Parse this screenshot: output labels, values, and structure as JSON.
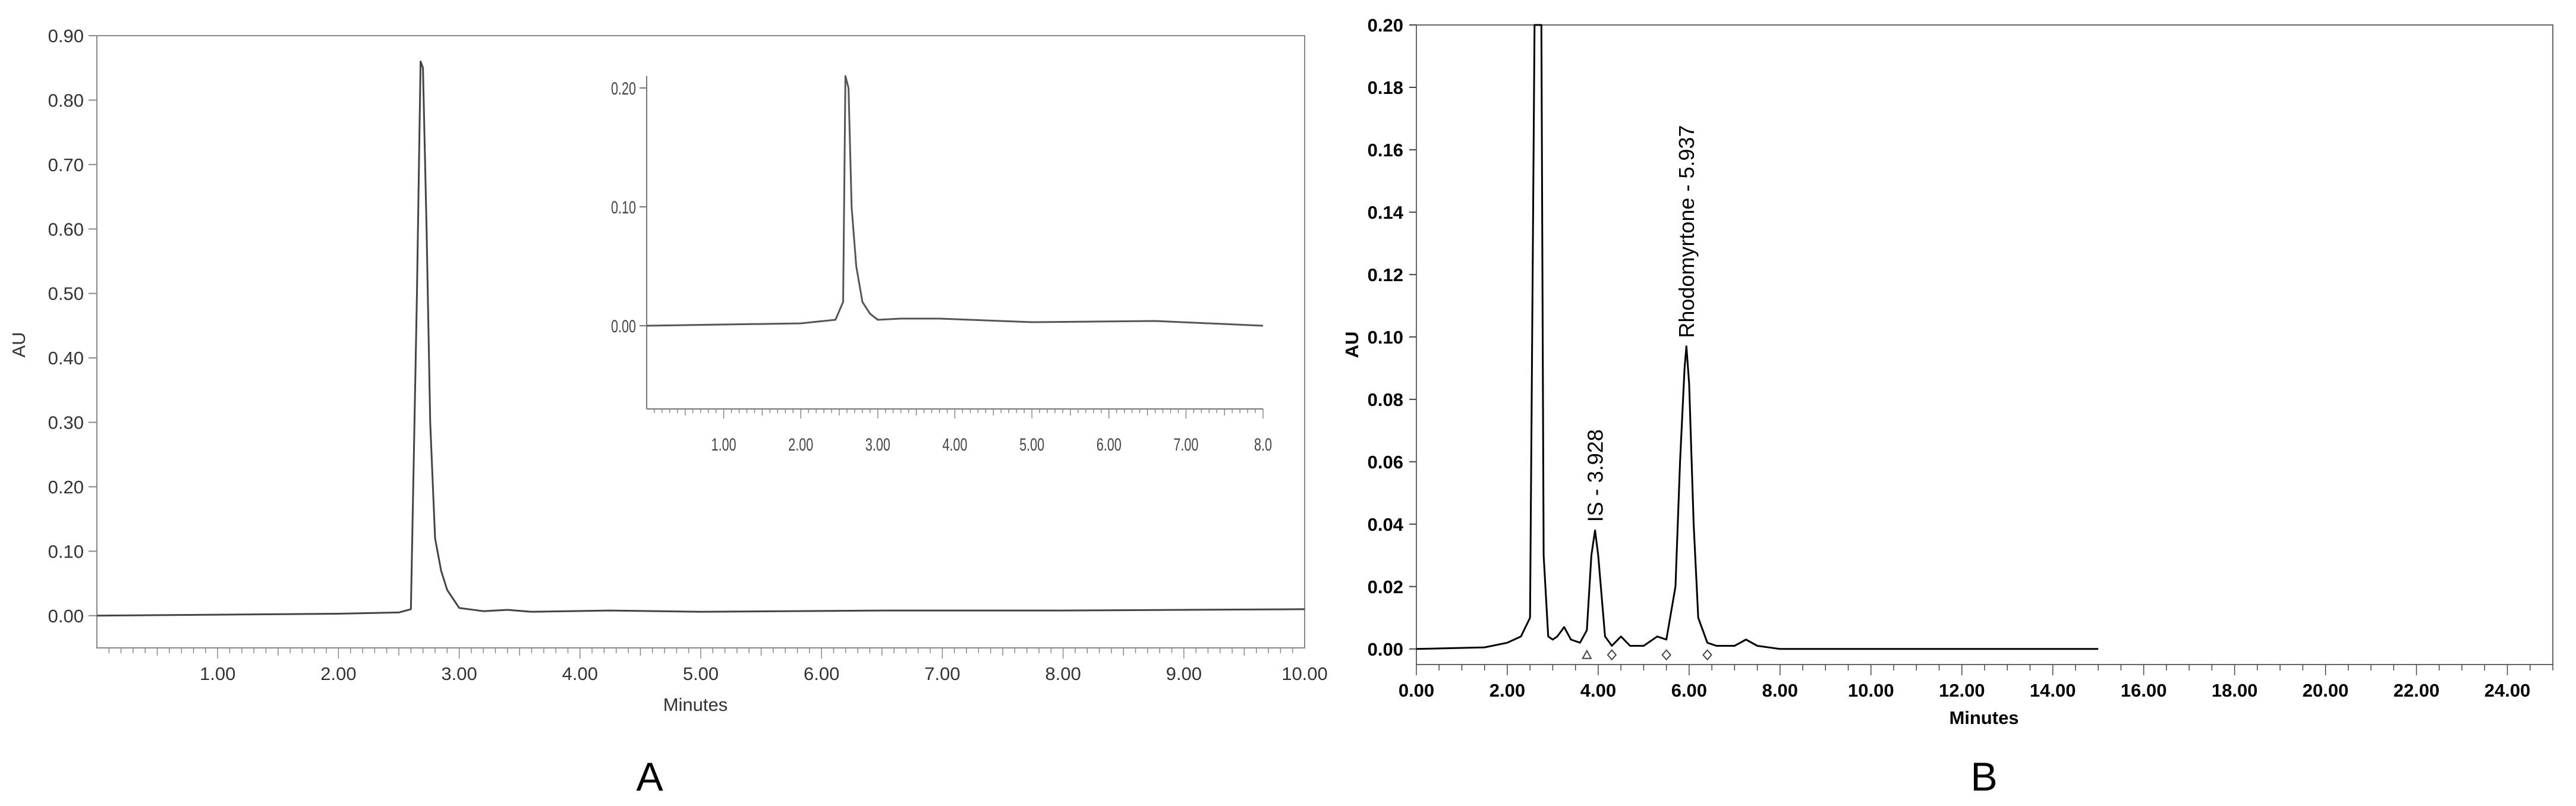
{
  "chart_data": [
    {
      "panel": "A",
      "type": "line",
      "title": "",
      "xlabel": "Minutes",
      "ylabel": "AU",
      "xlim": [
        0,
        10
      ],
      "ylim": [
        -0.05,
        0.9
      ],
      "x_ticks": [
        "1.00",
        "2.00",
        "3.00",
        "4.00",
        "5.00",
        "6.00",
        "7.00",
        "8.00",
        "9.00",
        "10.00"
      ],
      "y_ticks": [
        "0.00",
        "0.10",
        "0.20",
        "0.30",
        "0.40",
        "0.50",
        "0.60",
        "0.70",
        "0.80",
        "0.90"
      ],
      "grid": false,
      "series": [
        {
          "color": "#444444",
          "x": [
            0,
            2.0,
            2.5,
            2.6,
            2.65,
            2.68,
            2.7,
            2.73,
            2.76,
            2.8,
            2.85,
            2.9,
            3.0,
            3.2,
            3.4,
            3.6,
            4.25,
            5.0,
            6.5,
            8.0,
            10.0
          ],
          "y": [
            0.0,
            0.003,
            0.005,
            0.01,
            0.5,
            0.86,
            0.85,
            0.6,
            0.3,
            0.12,
            0.07,
            0.04,
            0.012,
            0.007,
            0.009,
            0.006,
            0.008,
            0.006,
            0.008,
            0.008,
            0.01
          ]
        }
      ],
      "inset": {
        "xlim": [
          0,
          8
        ],
        "ylim": [
          -0.07,
          0.21
        ],
        "x_ticks": [
          "1.00",
          "2.00",
          "3.00",
          "4.00",
          "5.00",
          "6.00",
          "7.00",
          "8.0"
        ],
        "y_ticks": [
          "0.00",
          "0.10",
          "0.20"
        ],
        "series": [
          {
            "color": "#555555",
            "x": [
              0,
              2.0,
              2.45,
              2.55,
              2.58,
              2.62,
              2.66,
              2.72,
              2.8,
              2.9,
              3.0,
              3.3,
              3.8,
              4.2,
              5.0,
              6.6,
              8.0
            ],
            "y": [
              0.0,
              0.002,
              0.005,
              0.02,
              0.21,
              0.2,
              0.1,
              0.05,
              0.02,
              0.01,
              0.005,
              0.006,
              0.006,
              0.005,
              0.003,
              0.004,
              0.0
            ]
          }
        ]
      }
    },
    {
      "panel": "B",
      "type": "line",
      "title": "",
      "xlabel": "Minutes",
      "ylabel": "AU",
      "xlim": [
        0,
        25
      ],
      "ylim": [
        -0.005,
        0.2
      ],
      "x_ticks": [
        "0.00",
        "2.00",
        "4.00",
        "6.00",
        "8.00",
        "10.00",
        "12.00",
        "14.00",
        "16.00",
        "18.00",
        "20.00",
        "22.00",
        "24.00"
      ],
      "y_ticks": [
        "0.00",
        "0.02",
        "0.04",
        "0.06",
        "0.08",
        "0.10",
        "0.12",
        "0.14",
        "0.16",
        "0.18",
        "0.20"
      ],
      "grid": false,
      "annotations": [
        {
          "text": "IS - 3.928",
          "x": 3.928,
          "y": 0.038
        },
        {
          "text": "Rhodomyrtone - 5.937",
          "x": 5.937,
          "y": 0.097
        }
      ],
      "series": [
        {
          "color": "#000000",
          "x": [
            0,
            1.5,
            2.0,
            2.3,
            2.5,
            2.6,
            2.65,
            2.7,
            2.75,
            2.8,
            2.9,
            3.0,
            3.1,
            3.25,
            3.4,
            3.6,
            3.75,
            3.85,
            3.93,
            4.0,
            4.15,
            4.3,
            4.5,
            4.7,
            5.0,
            5.3,
            5.5,
            5.7,
            5.8,
            5.9,
            5.94,
            6.0,
            6.1,
            6.2,
            6.4,
            6.6,
            7.0,
            7.25,
            7.5,
            8.0,
            10.0,
            12.0,
            15.0
          ],
          "y": [
            0.0,
            0.0005,
            0.002,
            0.004,
            0.01,
            0.2,
            0.2,
            0.2,
            0.2,
            0.03,
            0.004,
            0.003,
            0.004,
            0.007,
            0.003,
            0.002,
            0.006,
            0.03,
            0.038,
            0.03,
            0.004,
            0.001,
            0.004,
            0.001,
            0.001,
            0.004,
            0.003,
            0.02,
            0.06,
            0.09,
            0.097,
            0.085,
            0.04,
            0.01,
            0.002,
            0.001,
            0.001,
            0.003,
            0.001,
            0.0,
            0.0,
            0.0,
            0.0
          ]
        }
      ],
      "baseline_markers": [
        {
          "shape": "triangle",
          "x": 3.75
        },
        {
          "shape": "diamond",
          "x": 4.3
        },
        {
          "shape": "diamond",
          "x": 5.5
        },
        {
          "shape": "diamond",
          "x": 6.4
        }
      ]
    }
  ],
  "panel_letters": {
    "a": "A",
    "b": "B"
  }
}
